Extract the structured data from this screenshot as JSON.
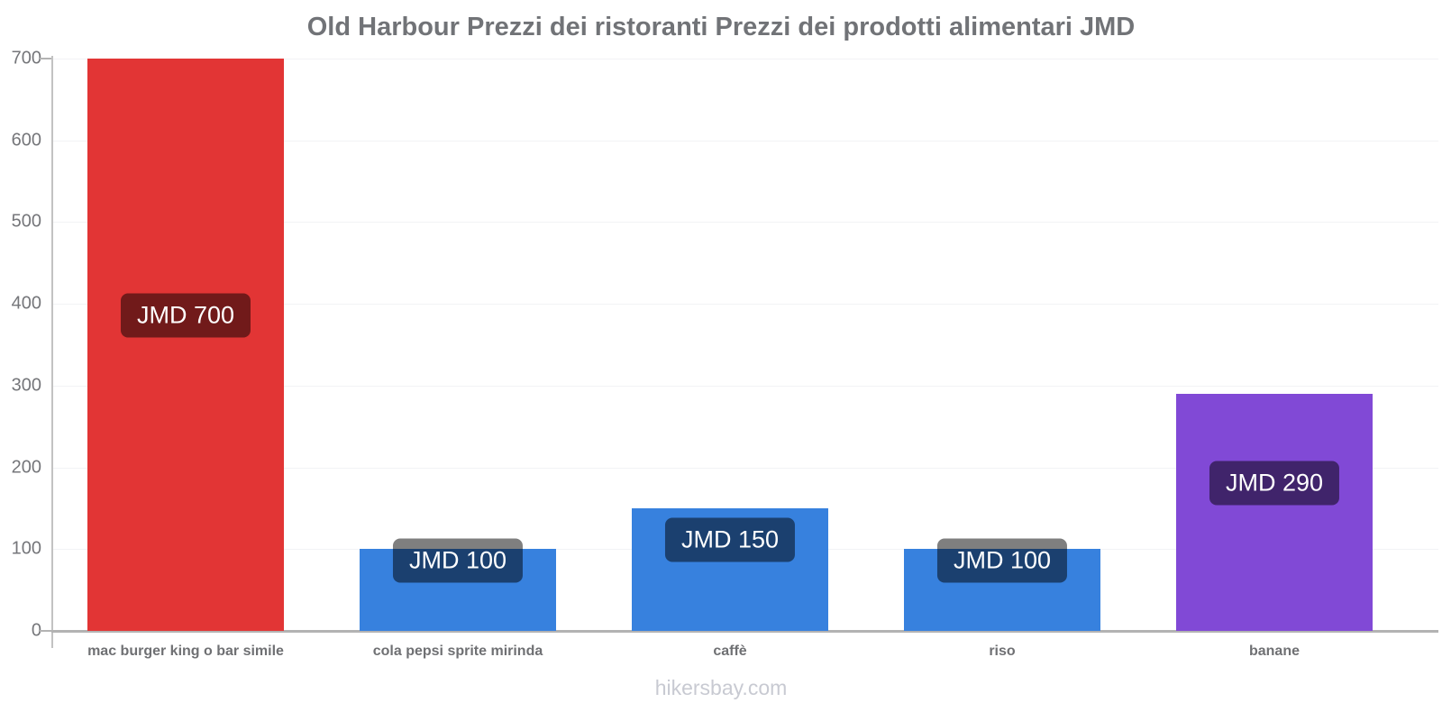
{
  "title": "Old Harbour Prezzi dei ristoranti Prezzi dei prodotti alimentari JMD",
  "footer": "hikersbay.com",
  "chart_data": {
    "type": "bar",
    "title": "Old Harbour Prezzi dei ristoranti Prezzi dei prodotti alimentari JMD",
    "xlabel": "",
    "ylabel": "",
    "currency": "JMD",
    "categories": [
      "mac burger king o bar simile",
      "cola pepsi sprite mirinda",
      "caffè",
      "riso",
      "banane"
    ],
    "values": [
      700,
      100,
      150,
      100,
      290
    ],
    "value_labels": [
      "JMD 700",
      "JMD 100",
      "JMD 150",
      "JMD 100",
      "JMD 290"
    ],
    "bar_colors": [
      "#e23535",
      "#3781de",
      "#3781de",
      "#3781de",
      "#8149d6"
    ],
    "ylim": [
      0,
      700
    ],
    "yticks": [
      0,
      100,
      200,
      300,
      400,
      500,
      600,
      700
    ],
    "grid": true,
    "legend": false,
    "grid_color": "#f2f3f5",
    "axis_color": "#b3b3b3",
    "tick_label_color": "#75767a",
    "category_label_color": "#6f7073",
    "title_color": "#717377",
    "value_label_bg": "rgba(0,0,0,0.5)",
    "value_label_text_color": "#ffffff",
    "watermark_color": "#c8cad2"
  }
}
